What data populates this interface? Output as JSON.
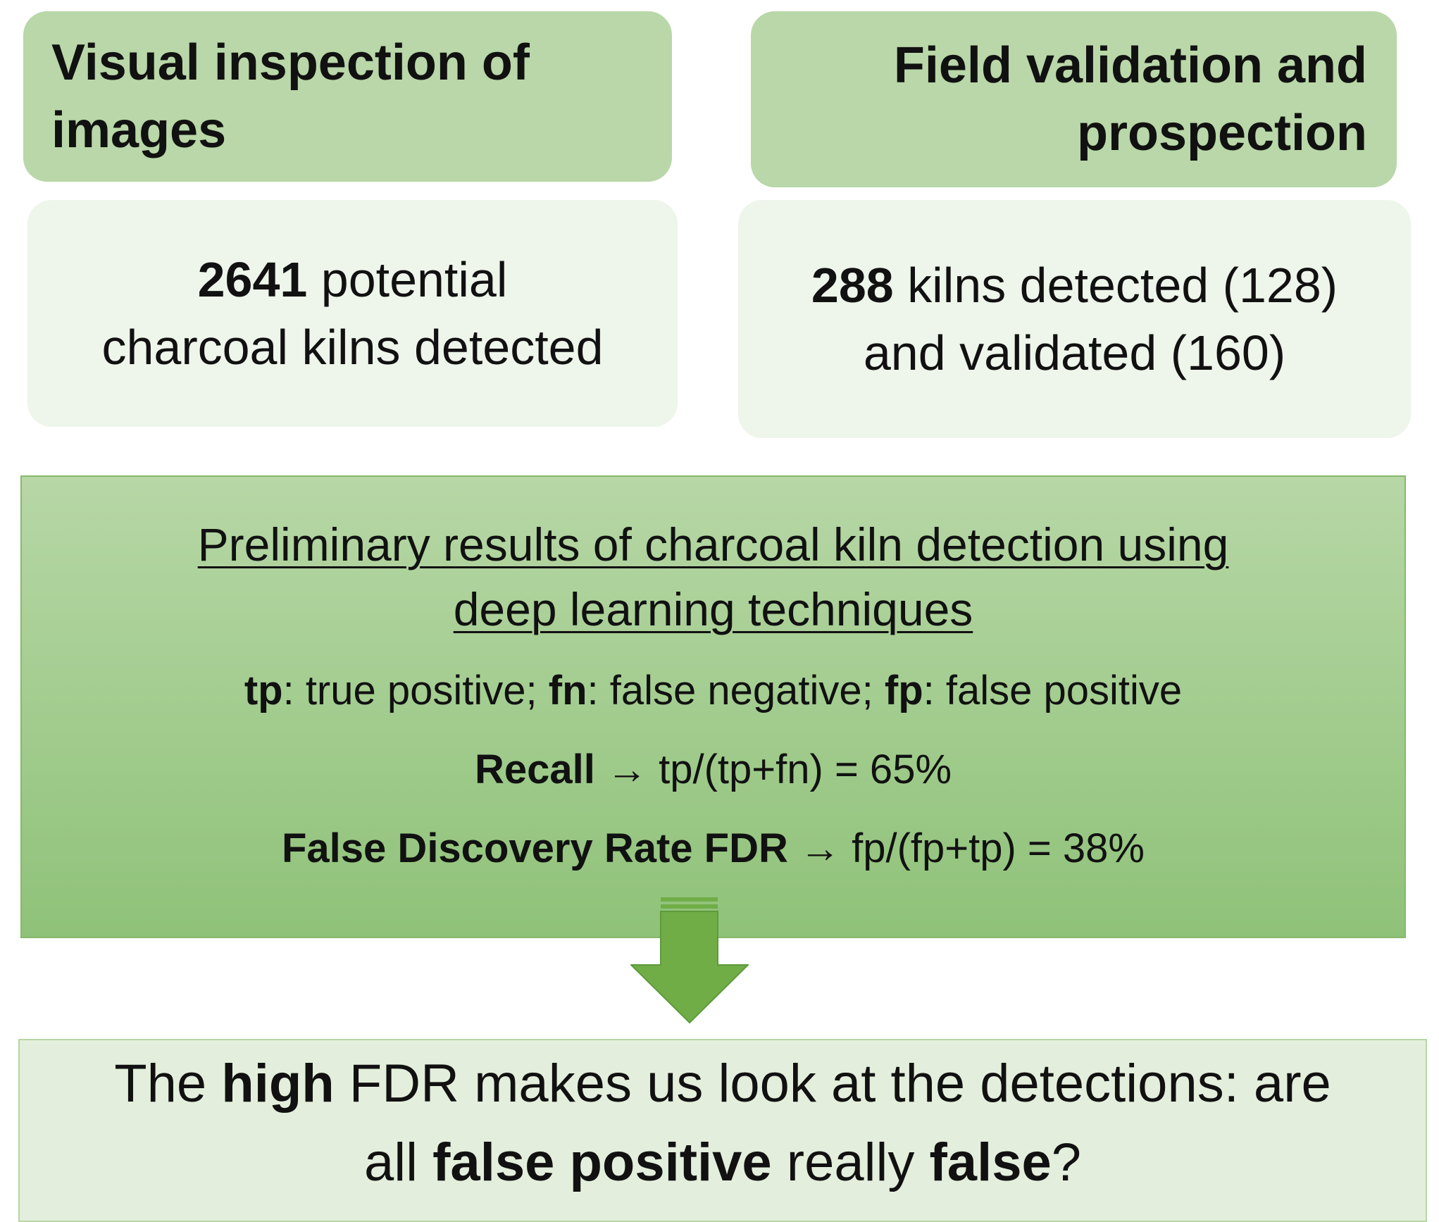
{
  "panels": [
    {
      "heading": [
        "Visual inspection of",
        "images"
      ],
      "body": [
        [
          {
            "text": "2641",
            "bold": true
          },
          {
            "text": " potential"
          }
        ],
        [
          {
            "text": "charcoal kilns detected"
          }
        ]
      ]
    },
    {
      "heading": [
        "Field validation and",
        "prospection"
      ],
      "body": [
        [
          {
            "text": "288",
            "bold": true
          },
          {
            "text": " kilns detected (128)"
          }
        ],
        [
          {
            "text": "and validated (160)"
          }
        ]
      ]
    }
  ],
  "results": {
    "title": [
      "Preliminary results of charcoal kiln detection using",
      "deep learning techniques"
    ],
    "lines": [
      [
        {
          "text": "tp",
          "bold": true
        },
        {
          "text": ": true positive; "
        },
        {
          "text": "fn",
          "bold": true
        },
        {
          "text": ": false negative; "
        },
        {
          "text": "fp",
          "bold": true
        },
        {
          "text": ": false positive"
        }
      ],
      [
        {
          "text": "Recall",
          "bold": true
        },
        {
          "text": " → tp/(tp+fn) = 65%"
        }
      ],
      [
        {
          "text": "False Discovery Rate FDR",
          "bold": true
        },
        {
          "text": " → fp/(fp+tp) = 38%"
        }
      ]
    ]
  },
  "conclusion": [
    [
      {
        "text": "The "
      },
      {
        "text": "high",
        "bold": true
      },
      {
        "text": " FDR makes us look at the detections: are"
      }
    ],
    [
      {
        "text": "all "
      },
      {
        "text": "false positive",
        "bold": true
      },
      {
        "text": " really "
      },
      {
        "text": "false",
        "bold": true
      },
      {
        "text": "?"
      }
    ]
  ]
}
